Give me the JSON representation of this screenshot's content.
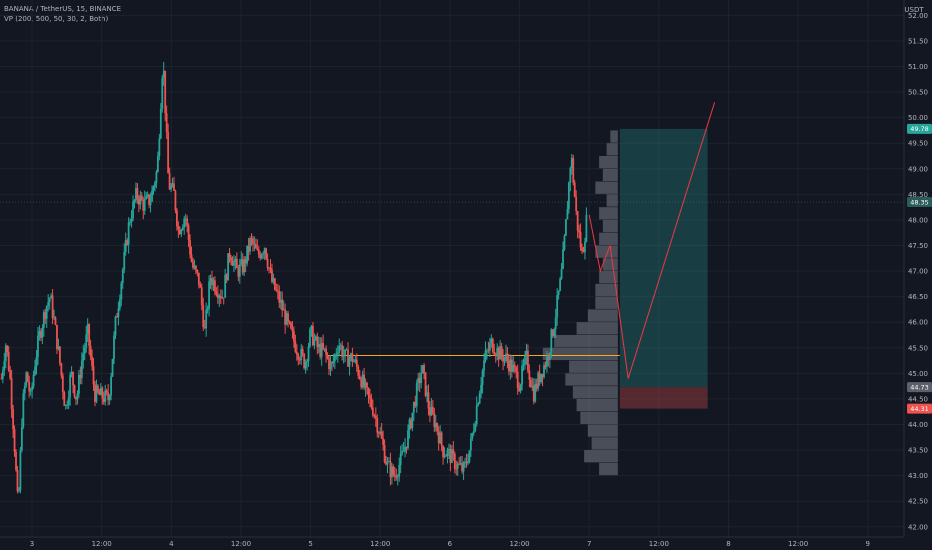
{
  "header": {
    "symbol_line": "BANANA / TetherUS, 15, BINANCE",
    "indicator_line": "VP (200, 500, 50, 30, 2, Both)",
    "currency": "USDT"
  },
  "colors": {
    "background": "#131722",
    "grid": "#1e222d",
    "bull": "#26a69a",
    "bear": "#ef5350",
    "level_line": "#f5a623",
    "tp_zone": "#26a69a",
    "sl_zone": "#ef5350",
    "projection": "#f23645",
    "volume_profile": "#787b86"
  },
  "chart_data": {
    "type": "candlestick",
    "title": "BANANA / TetherUS, 15, BINANCE",
    "indicator": "VP (200, 500, 50, 30, 2, Both)",
    "y_axis": {
      "ylim": [
        41.8,
        52.3
      ],
      "ticks": [
        "42.00",
        "42.50",
        "43.00",
        "43.50",
        "44.00",
        "44.50",
        "45.00",
        "45.50",
        "46.00",
        "46.50",
        "47.00",
        "47.50",
        "48.00",
        "48.50",
        "49.00",
        "49.50",
        "50.00",
        "50.50",
        "51.00",
        "51.50",
        "52.00"
      ],
      "scale": "linear"
    },
    "x_axis": {
      "ticks": [
        {
          "label": "3",
          "t": 0.5
        },
        {
          "label": "12:00",
          "t": 1.0
        },
        {
          "label": "4",
          "t": 1.5
        },
        {
          "label": "12:00",
          "t": 2.0
        },
        {
          "label": "5",
          "t": 2.5
        },
        {
          "label": "12:00",
          "t": 3.0
        },
        {
          "label": "6",
          "t": 3.5
        },
        {
          "label": "12:00",
          "t": 4.0
        },
        {
          "label": "7",
          "t": 4.5
        },
        {
          "label": "12:00",
          "t": 5.0
        },
        {
          "label": "8",
          "t": 5.5
        },
        {
          "label": "12:00",
          "t": 6.0
        },
        {
          "label": "9",
          "t": 6.5
        }
      ],
      "t_range": [
        0.27,
        6.76
      ]
    },
    "price_path": [
      {
        "t": 0.28,
        "p": 44.9
      },
      {
        "t": 0.31,
        "p": 45.6
      },
      {
        "t": 0.34,
        "p": 45.0
      },
      {
        "t": 0.37,
        "p": 43.8
      },
      {
        "t": 0.4,
        "p": 42.3
      },
      {
        "t": 0.43,
        "p": 44.3
      },
      {
        "t": 0.46,
        "p": 45.0
      },
      {
        "t": 0.49,
        "p": 44.5
      },
      {
        "t": 0.52,
        "p": 45.2
      },
      {
        "t": 0.55,
        "p": 45.7
      },
      {
        "t": 0.6,
        "p": 46.3
      },
      {
        "t": 0.63,
        "p": 46.5
      },
      {
        "t": 0.66,
        "p": 46.0
      },
      {
        "t": 0.7,
        "p": 45.2
      },
      {
        "t": 0.74,
        "p": 44.3
      },
      {
        "t": 0.78,
        "p": 45.0
      },
      {
        "t": 0.82,
        "p": 44.5
      },
      {
        "t": 0.86,
        "p": 45.3
      },
      {
        "t": 0.9,
        "p": 45.8
      },
      {
        "t": 0.95,
        "p": 44.6
      },
      {
        "t": 1.05,
        "p": 44.5
      },
      {
        "t": 1.1,
        "p": 46.0
      },
      {
        "t": 1.15,
        "p": 47.0
      },
      {
        "t": 1.2,
        "p": 48.0
      },
      {
        "t": 1.25,
        "p": 48.5
      },
      {
        "t": 1.3,
        "p": 48.3
      },
      {
        "t": 1.35,
        "p": 48.4
      },
      {
        "t": 1.4,
        "p": 49.0
      },
      {
        "t": 1.44,
        "p": 51.2
      },
      {
        "t": 1.48,
        "p": 48.7
      },
      {
        "t": 1.52,
        "p": 48.5
      },
      {
        "t": 1.55,
        "p": 47.8
      },
      {
        "t": 1.6,
        "p": 48.1
      },
      {
        "t": 1.65,
        "p": 47.1
      },
      {
        "t": 1.7,
        "p": 46.8
      },
      {
        "t": 1.74,
        "p": 45.8
      },
      {
        "t": 1.78,
        "p": 46.9
      },
      {
        "t": 1.82,
        "p": 46.7
      },
      {
        "t": 1.87,
        "p": 46.5
      },
      {
        "t": 1.92,
        "p": 47.4
      },
      {
        "t": 1.97,
        "p": 47.0
      },
      {
        "t": 2.02,
        "p": 47.1
      },
      {
        "t": 2.07,
        "p": 47.6
      },
      {
        "t": 2.12,
        "p": 47.3
      },
      {
        "t": 2.17,
        "p": 47.5
      },
      {
        "t": 2.22,
        "p": 46.8
      },
      {
        "t": 2.28,
        "p": 46.4
      },
      {
        "t": 2.34,
        "p": 45.9
      },
      {
        "t": 2.4,
        "p": 45.5
      },
      {
        "t": 2.46,
        "p": 45.2
      },
      {
        "t": 2.5,
        "p": 45.8
      },
      {
        "t": 2.55,
        "p": 45.5
      },
      {
        "t": 2.6,
        "p": 45.4
      },
      {
        "t": 2.65,
        "p": 45.1
      },
      {
        "t": 2.7,
        "p": 45.6
      },
      {
        "t": 2.75,
        "p": 45.3
      },
      {
        "t": 2.8,
        "p": 45.3
      },
      {
        "t": 2.85,
        "p": 45.0
      },
      {
        "t": 2.9,
        "p": 44.6
      },
      {
        "t": 2.95,
        "p": 44.3
      },
      {
        "t": 3.0,
        "p": 43.8
      },
      {
        "t": 3.05,
        "p": 43.2
      },
      {
        "t": 3.1,
        "p": 43.0
      },
      {
        "t": 3.15,
        "p": 43.3
      },
      {
        "t": 3.2,
        "p": 43.8
      },
      {
        "t": 3.25,
        "p": 44.5
      },
      {
        "t": 3.3,
        "p": 45.1
      },
      {
        "t": 3.35,
        "p": 44.3
      },
      {
        "t": 3.4,
        "p": 44.0
      },
      {
        "t": 3.45,
        "p": 43.5
      },
      {
        "t": 3.5,
        "p": 43.4
      },
      {
        "t": 3.55,
        "p": 43.2
      },
      {
        "t": 3.6,
        "p": 43.1
      },
      {
        "t": 3.65,
        "p": 43.6
      },
      {
        "t": 3.7,
        "p": 44.5
      },
      {
        "t": 3.75,
        "p": 45.3
      },
      {
        "t": 3.8,
        "p": 45.6
      },
      {
        "t": 3.85,
        "p": 45.4
      },
      {
        "t": 3.9,
        "p": 45.3
      },
      {
        "t": 3.95,
        "p": 45.1
      },
      {
        "t": 4.0,
        "p": 44.8
      },
      {
        "t": 4.05,
        "p": 45.3
      },
      {
        "t": 4.1,
        "p": 44.6
      },
      {
        "t": 4.15,
        "p": 45.0
      },
      {
        "t": 4.2,
        "p": 45.3
      },
      {
        "t": 4.25,
        "p": 46.0
      },
      {
        "t": 4.3,
        "p": 46.9
      },
      {
        "t": 4.33,
        "p": 47.8
      },
      {
        "t": 4.37,
        "p": 49.3
      },
      {
        "t": 4.41,
        "p": 48.0
      },
      {
        "t": 4.45,
        "p": 47.3
      },
      {
        "t": 4.49,
        "p": 48.2
      }
    ],
    "volume_profile": {
      "type": "horizontal-histogram",
      "price_bins": [
        43.0,
        43.25,
        43.5,
        43.75,
        44.0,
        44.25,
        44.5,
        44.75,
        45.0,
        45.25,
        45.5,
        45.75,
        46.0,
        46.25,
        46.5,
        46.75,
        47.0,
        47.25,
        47.5,
        47.75,
        48.0,
        48.25,
        48.5,
        48.75,
        49.0,
        49.25,
        49.5
      ],
      "relative_volume": [
        0.25,
        0.45,
        0.35,
        0.4,
        0.5,
        0.55,
        0.6,
        0.7,
        0.65,
        1.0,
        0.85,
        0.55,
        0.4,
        0.3,
        0.3,
        0.25,
        0.2,
        0.3,
        0.25,
        0.2,
        0.25,
        0.15,
        0.3,
        0.2,
        0.25,
        0.15,
        0.1
      ]
    },
    "level_line": {
      "price": 45.35
    },
    "position": {
      "type": "long",
      "entry": 44.73,
      "take_profit": 49.78,
      "stop_loss": 44.31,
      "t_start": 4.72,
      "t_end": 5.35
    },
    "projection_path": [
      {
        "t": 4.5,
        "p": 48.1
      },
      {
        "t": 4.58,
        "p": 47.0
      },
      {
        "t": 4.65,
        "p": 47.5
      },
      {
        "t": 4.78,
        "p": 44.9
      },
      {
        "t": 5.4,
        "p": 50.3
      }
    ],
    "price_tags": [
      {
        "label": "49.78",
        "price": 49.78,
        "color": "#26a69a"
      },
      {
        "label": "48.35",
        "price": 48.35,
        "color": "#2a5c5a"
      },
      {
        "label": "44.73",
        "price": 44.73,
        "color": "#5d606b"
      },
      {
        "label": "44.31",
        "price": 44.31,
        "color": "#ef5350"
      }
    ]
  }
}
